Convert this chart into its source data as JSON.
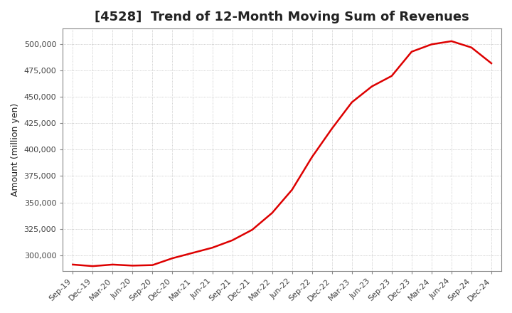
{
  "title": "[4528]  Trend of 12-Month Moving Sum of Revenues",
  "ylabel": "Amount (million yen)",
  "background_color": "#ffffff",
  "plot_bg_color": "#ffffff",
  "line_color": "#dd0000",
  "ylim": [
    285000,
    515000
  ],
  "yticks": [
    300000,
    325000,
    350000,
    375000,
    400000,
    425000,
    450000,
    475000,
    500000
  ],
  "values": [
    291000,
    289500,
    291000,
    290000,
    290500,
    297000,
    302000,
    307000,
    314000,
    324000,
    340000,
    362000,
    393000,
    420000,
    445000,
    460000,
    470000,
    493000,
    500000,
    503000,
    497000,
    482000
  ],
  "xtick_labels": [
    "Sep-19",
    "Dec-19",
    "Mar-20",
    "Jun-20",
    "Sep-20",
    "Dec-20",
    "Mar-21",
    "Jun-21",
    "Sep-21",
    "Dec-21",
    "Mar-22",
    "Jun-22",
    "Sep-22",
    "Dec-22",
    "Mar-23",
    "Jun-23",
    "Sep-23",
    "Dec-23",
    "Mar-24",
    "Jun-24",
    "Sep-24",
    "Dec-24"
  ],
  "title_color": "#222222",
  "tick_label_color": "#444444",
  "grid_color": "#aaaaaa",
  "title_fontsize": 13,
  "ylabel_fontsize": 9,
  "tick_fontsize": 8
}
